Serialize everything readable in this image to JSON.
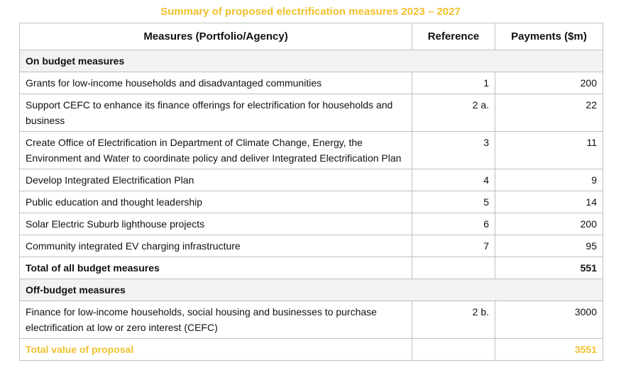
{
  "title": "Summary of proposed electrification measures 2023 – 2027",
  "table": {
    "columns": [
      "Measures (Portfolio/Agency)",
      "Reference",
      "Payments ($m)"
    ],
    "sections": [
      {
        "title": "On budget measures",
        "rows": [
          [
            "Grants for low-income households and disadvantaged communities",
            1,
            200
          ],
          [
            "Support CEFC to enhance its finance offerings for electrification for households and business",
            "2 a.",
            22
          ],
          [
            "Create Office of Electrification in Department of Climate Change, Energy, the Environment and Water to coordinate policy and deliver Integrated Electrification Plan",
            3,
            11
          ],
          [
            "Develop Integrated Electrification Plan",
            4,
            9
          ],
          [
            "Public education and thought leadership",
            5,
            14
          ],
          [
            "Solar Electric Suburb lighthouse projects",
            6,
            200
          ],
          [
            "Community integrated EV charging infrastructure",
            7,
            95
          ]
        ],
        "total": [
          "Total of all budget measures",
          551
        ]
      },
      {
        "title": "Off-budget measures",
        "rows": [
          [
            "Finance for low-income households, social housing and businesses to purchase electrification at low or zero interest (CEFC)",
            "2 b.",
            3000
          ]
        ]
      }
    ],
    "grand_total": [
      "Total value of proposal",
      3551
    ]
  }
}
